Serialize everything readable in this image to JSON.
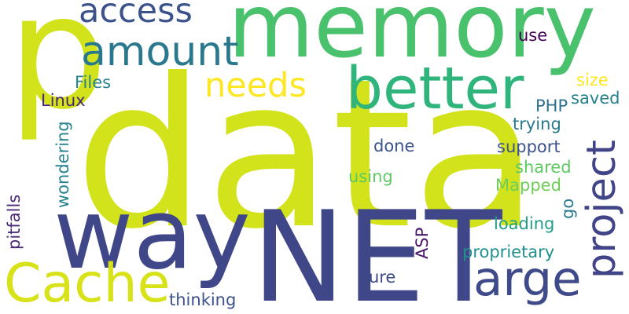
{
  "words": [
    {
      "text": "data",
      "color": "#d2e21b"
    },
    {
      "text": "NET",
      "color": "#3f4788"
    },
    {
      "text": "p",
      "color": "#d2e21b"
    },
    {
      "text": "memory",
      "color": "#4ac16d"
    },
    {
      "text": "way",
      "color": "#3f4788"
    },
    {
      "text": "better",
      "color": "#2fb47c"
    },
    {
      "text": "Cache",
      "color": "#d8e219"
    },
    {
      "text": "large",
      "color": "#3e4a89"
    },
    {
      "text": "project",
      "color": "#414487"
    },
    {
      "text": "needs",
      "color": "#fde725"
    },
    {
      "text": "amount",
      "color": "#2a788e"
    },
    {
      "text": "access",
      "color": "#3b528b"
    },
    {
      "text": "thinking",
      "color": "#3b528b"
    },
    {
      "text": "proprietary",
      "color": "#21908d"
    },
    {
      "text": "sure",
      "color": "#3e4a89"
    },
    {
      "text": "loading",
      "color": "#1f9e89"
    },
    {
      "text": "Mapped",
      "color": "#6ece58"
    },
    {
      "text": "shared",
      "color": "#5ec962"
    },
    {
      "text": "support",
      "color": "#3b528b"
    },
    {
      "text": "trying",
      "color": "#2a788e"
    },
    {
      "text": "saved",
      "color": "#26828e"
    },
    {
      "text": "size",
      "color": "#fde725"
    },
    {
      "text": "PHP",
      "color": "#2c728e"
    },
    {
      "text": "use",
      "color": "#440154"
    },
    {
      "text": "done",
      "color": "#3b528b"
    },
    {
      "text": "using",
      "color": "#5ec962"
    },
    {
      "text": "Files",
      "color": "#26828e"
    },
    {
      "text": "Linux",
      "color": "#482475"
    },
    {
      "text": "go",
      "color": "#2a788e"
    },
    {
      "text": "ASP",
      "color": "#481769"
    },
    {
      "text": "wondering",
      "color": "#26828e"
    },
    {
      "text": "pitfalls",
      "color": "#482878"
    }
  ]
}
